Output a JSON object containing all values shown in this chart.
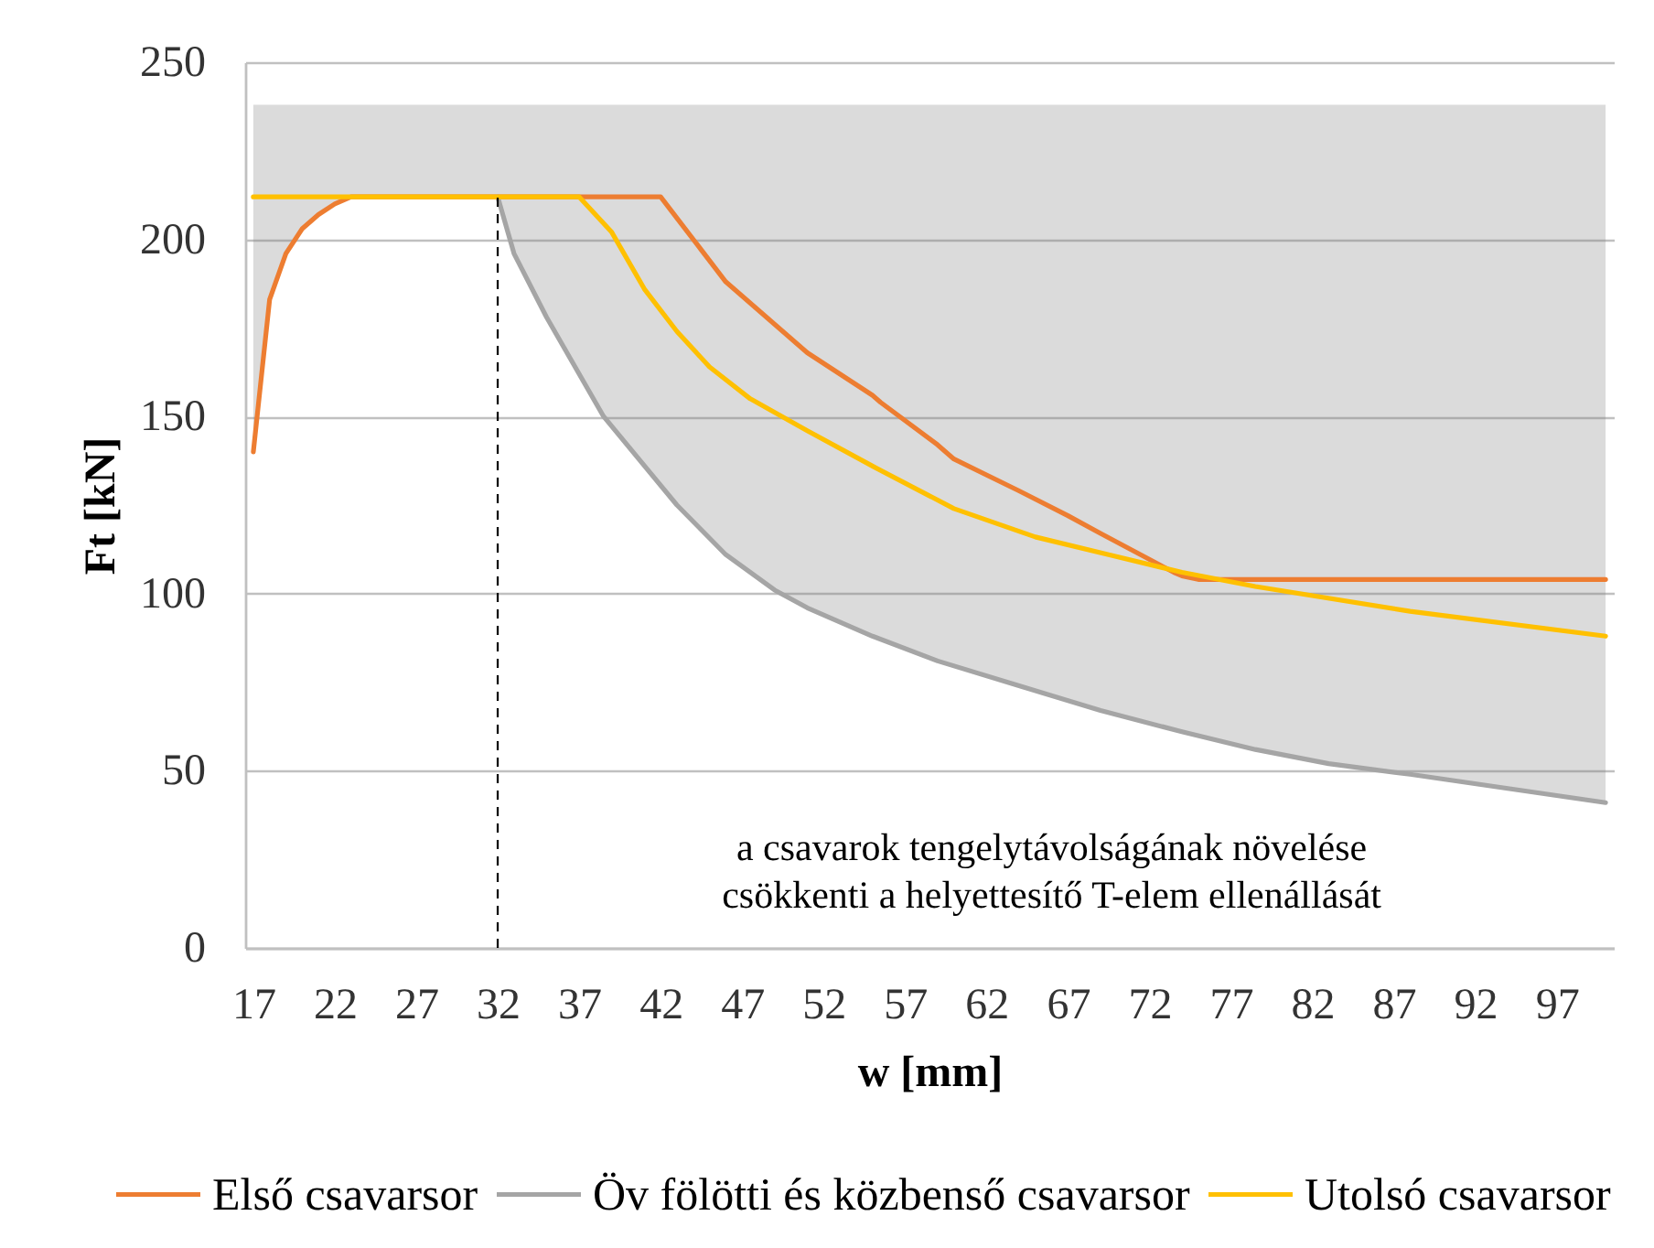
{
  "chart_data": {
    "type": "line",
    "xlabel": "w [mm]",
    "ylabel": "Ft [kN]",
    "xlim": [
      16.5,
      100.5
    ],
    "xticks": [
      17,
      22,
      27,
      32,
      37,
      42,
      47,
      52,
      57,
      62,
      67,
      72,
      77,
      82,
      87,
      92,
      97
    ],
    "ylim": [
      0,
      250
    ],
    "yticks": [
      0,
      50,
      100,
      150,
      200,
      250
    ],
    "grid": "y",
    "legend": "bottom",
    "series": [
      {
        "name": "Első csavarsor",
        "color": "#ed7d31",
        "x": [
          17,
          18,
          19,
          20,
          21,
          22,
          23,
          32,
          33,
          35,
          38.5,
          42,
          43,
          46,
          49,
          50.5,
          51,
          55,
          55.5,
          59,
          60,
          64,
          67,
          69,
          73.5,
          74,
          75,
          78.5,
          83,
          88,
          94,
          100
        ],
        "values": [
          140,
          183,
          196,
          203,
          207,
          210,
          212,
          212,
          212,
          212,
          212,
          212,
          206,
          188,
          176,
          170,
          168,
          156,
          154,
          142,
          138,
          129,
          122,
          117,
          106,
          105,
          104,
          104,
          104,
          104,
          104,
          104
        ],
        "lower": [
          140,
          183,
          196,
          203,
          207,
          210,
          212,
          212,
          196,
          178,
          150,
          131,
          125,
          111,
          101,
          97,
          96,
          88,
          87,
          81,
          80,
          74,
          70,
          67,
          62,
          61,
          60,
          56,
          52,
          49,
          45,
          41
        ],
        "upper": [
          238,
          238,
          238,
          238,
          238,
          238,
          238,
          238,
          238,
          238,
          238,
          238,
          238,
          238,
          238,
          238,
          238,
          238,
          238,
          238,
          238,
          238,
          238,
          238,
          238,
          238,
          238,
          238,
          238,
          238,
          238,
          238
        ]
      },
      {
        "name": "Öv fölötti és közbenső csavarsor",
        "color": "#a5a5a5",
        "x": [
          32,
          33,
          35,
          38.5,
          43,
          46,
          49,
          51,
          55,
          59,
          64,
          69,
          74,
          78.5,
          83,
          88,
          94,
          100
        ],
        "values": [
          212,
          196,
          178,
          150,
          125,
          111,
          101,
          96,
          88,
          81,
          74,
          67,
          61,
          56,
          52,
          49,
          45,
          41
        ]
      },
      {
        "name": "Utolsó csavarsor",
        "color": "#ffc000",
        "x": [
          17,
          37,
          39,
          41,
          43,
          45,
          47.5,
          51,
          55,
          60,
          65,
          69.5,
          74,
          78.5,
          88,
          100
        ],
        "values": [
          212,
          212,
          202,
          186,
          174,
          164,
          155,
          146,
          136,
          124,
          116,
          111,
          106,
          102,
          95,
          88
        ]
      }
    ],
    "ref_lines": [
      {
        "axis": "x",
        "value": 32,
        "color": "#000000",
        "line_style": "dashed"
      }
    ],
    "annotations": [
      "a csavarok tengelytávolságának növelése\ncsökkenti a helyettesítő T-elem ellenállását"
    ]
  }
}
